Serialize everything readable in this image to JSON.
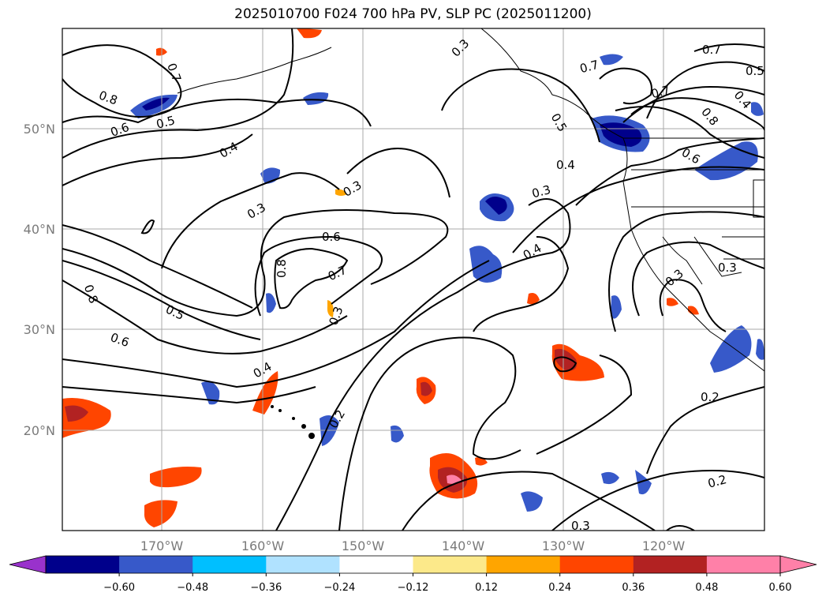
{
  "title": "2025010700 F024 700 hPa PV, SLP PC (2025011200)",
  "map": {
    "lat_labels": [
      "50°N",
      "40°N",
      "30°N",
      "20°N"
    ],
    "lon_labels": [
      "170°W",
      "160°W",
      "150°W",
      "140°W",
      "130°W",
      "120°W"
    ],
    "contour_labels": [
      "0.8",
      "0.6",
      "0.5",
      "0.7",
      "0.4",
      "0.3",
      "0.3",
      "0.3",
      "0.6",
      "0.7",
      "0.8",
      "0.8",
      "0.5",
      "0.6",
      "0.4",
      "0.2",
      "0.3",
      "0.3",
      "0.7",
      "0.5",
      "0.4",
      "0.7",
      "0.8",
      "0.6",
      "0.7",
      "0.5",
      "0.4",
      "0.4",
      "0.3",
      "0.2",
      "0.2",
      "0.3",
      "0.3"
    ]
  },
  "colorbar": {
    "ticks": [
      "−0.60",
      "−0.48",
      "−0.36",
      "−0.24",
      "−0.12",
      "0.12",
      "0.24",
      "0.36",
      "0.48",
      "0.60"
    ],
    "colors": [
      "#9932cc",
      "#00008b",
      "#3759c9",
      "#00bfff",
      "#b0e2ff",
      "#ffffff",
      "#fce98a",
      "#ffa500",
      "#ff4500",
      "#b22222",
      "#ff80a8",
      "#ff80a8"
    ]
  }
}
